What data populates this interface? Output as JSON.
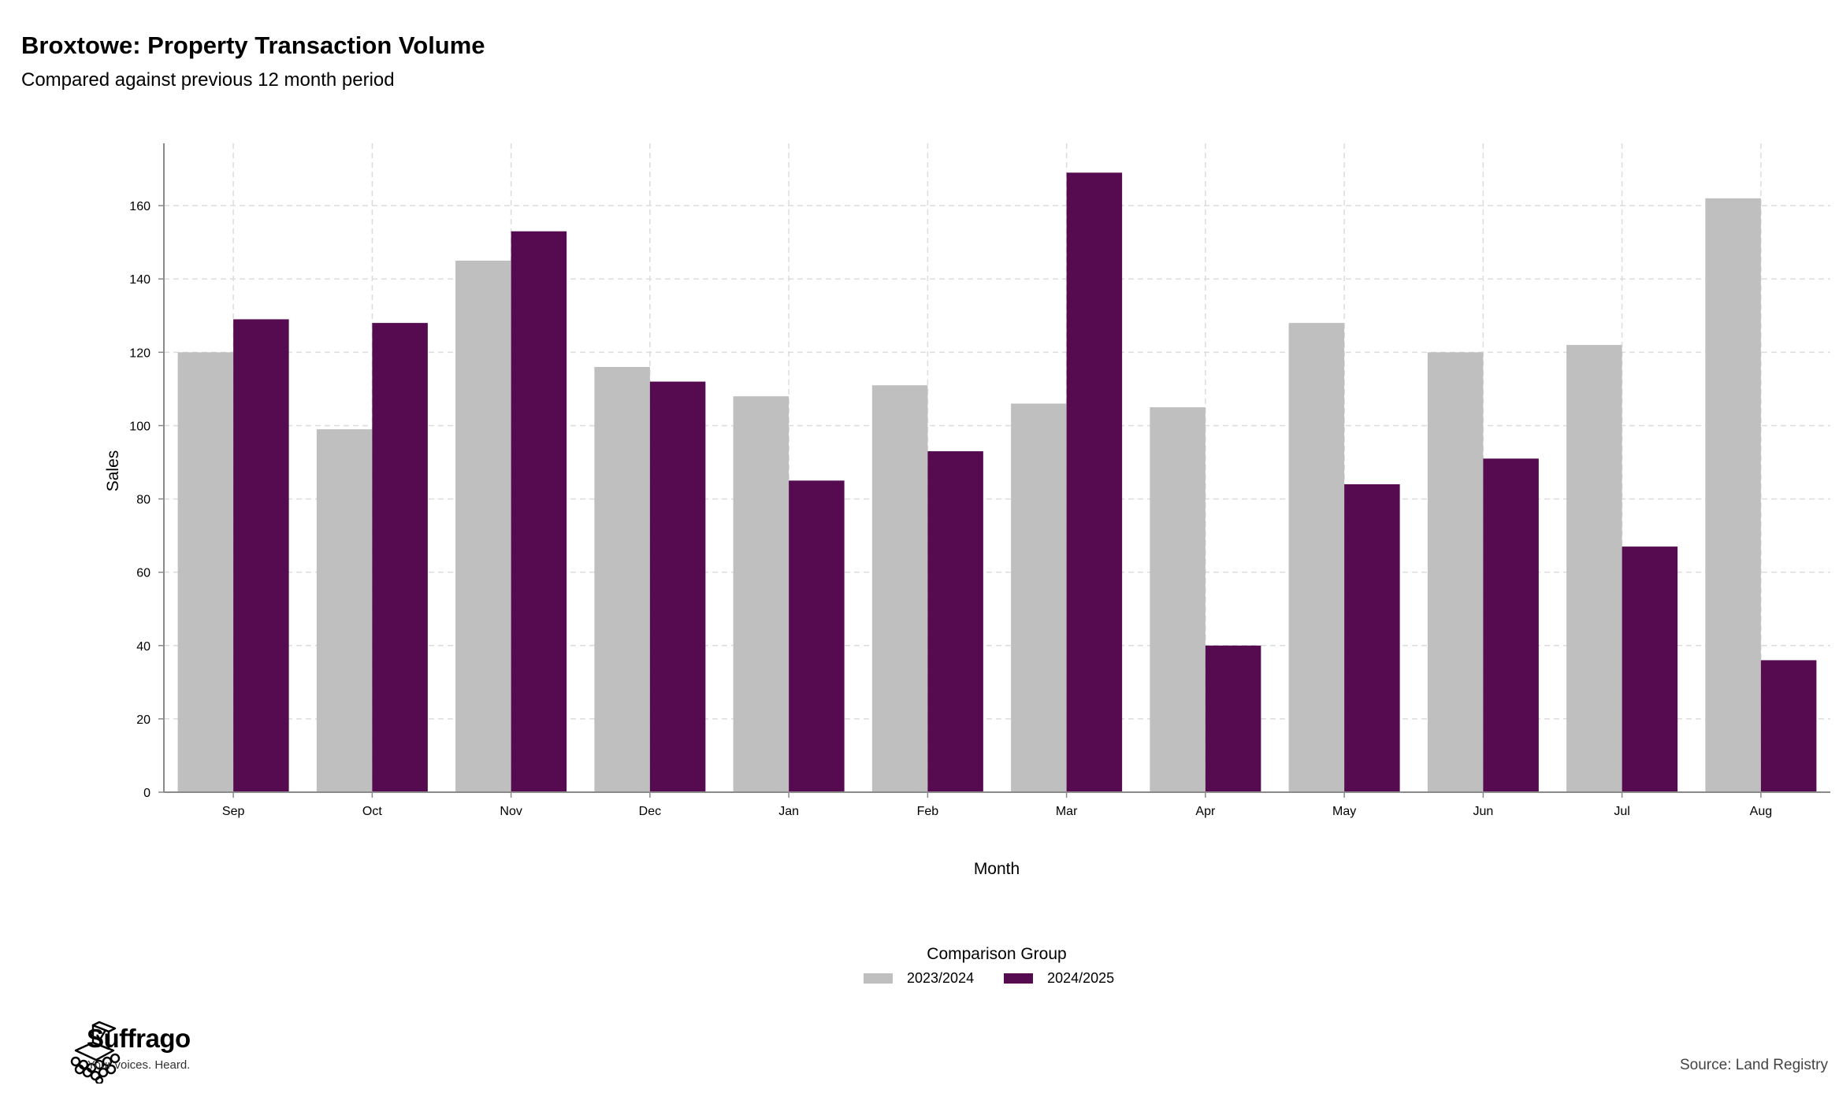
{
  "header": {
    "title": "Broxtowe: Property Transaction Volume",
    "subtitle": "Compared against previous 12 month period"
  },
  "legend": {
    "title": "Comparison Group",
    "items": [
      {
        "label": "2023/2024",
        "color": "#bfbfbf"
      },
      {
        "label": "2024/2025",
        "color": "#560b51"
      }
    ]
  },
  "branding": {
    "name": "Suffrago",
    "tagline": "Your voices. Heard.",
    "icon": "ballot-box-icon"
  },
  "footer": {
    "source": "Source: Land Registry"
  },
  "chart_data": {
    "type": "bar",
    "xlabel": "Month",
    "ylabel": "Sales",
    "ylim": [
      0,
      177
    ],
    "yticks": [
      0,
      20,
      40,
      60,
      80,
      100,
      120,
      140,
      160
    ],
    "grid": true,
    "legend_position": "bottom",
    "categories": [
      "Sep",
      "Oct",
      "Nov",
      "Dec",
      "Jan",
      "Feb",
      "Mar",
      "Apr",
      "May",
      "Jun",
      "Jul",
      "Aug"
    ],
    "series": [
      {
        "name": "2023/2024",
        "color": "#bfbfbf",
        "values": [
          120,
          99,
          145,
          116,
          108,
          111,
          106,
          105,
          128,
          120,
          122,
          162
        ]
      },
      {
        "name": "2024/2025",
        "color": "#560b51",
        "values": [
          129,
          128,
          153,
          112,
          85,
          93,
          169,
          40,
          84,
          91,
          67,
          36
        ]
      }
    ]
  }
}
